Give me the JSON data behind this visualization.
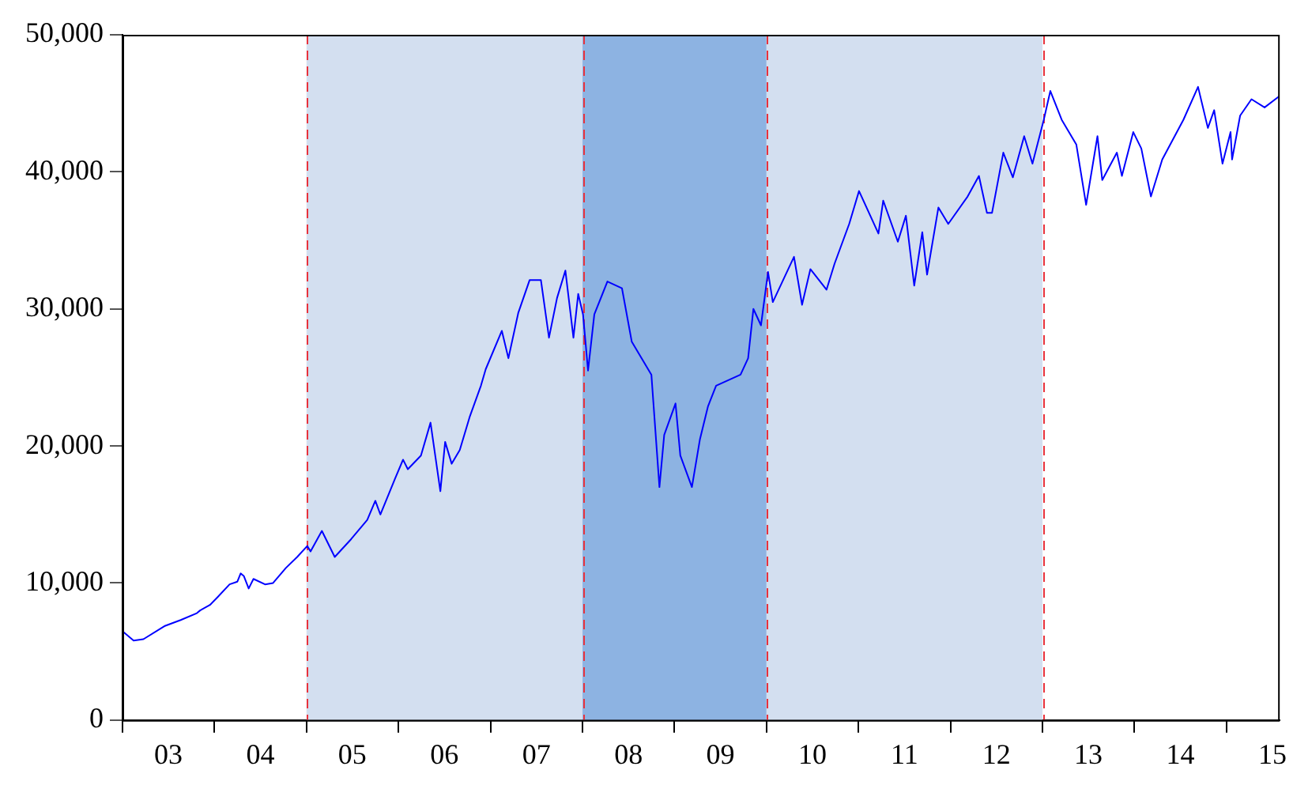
{
  "chart_data": {
    "type": "line",
    "x": [
      "2003-01-06",
      "2003-02-14",
      "2003-03-25",
      "2003-06-16",
      "2003-08-20",
      "2003-10-23",
      "2003-11-05",
      "2003-12-14",
      "2004-01-15",
      "2004-03-01",
      "2004-04-01",
      "2004-04-14",
      "2004-04-27",
      "2004-05-16",
      "2004-06-04",
      "2004-07-20",
      "2004-08-21",
      "2004-10-11",
      "2004-11-25",
      "2005-01-04",
      "2005-01-17",
      "2005-03-03",
      "2005-04-23",
      "2005-06-27",
      "2005-08-30",
      "2005-10-01",
      "2005-10-21",
      "2005-12-18",
      "2006-01-19",
      "2006-02-07",
      "2006-03-31",
      "2006-05-08",
      "2006-06-16",
      "2006-07-05",
      "2006-07-31",
      "2006-09-01",
      "2006-10-10",
      "2006-11-24",
      "2006-12-13",
      "2007-02-15",
      "2007-03-13",
      "2007-04-21",
      "2007-06-05",
      "2007-07-20",
      "2007-08-21",
      "2007-09-22",
      "2007-10-25",
      "2007-11-26",
      "2007-12-15",
      "2008-01-03",
      "2008-01-23",
      "2008-02-17",
      "2008-04-09",
      "2008-06-06",
      "2008-07-15",
      "2008-10-01",
      "2008-11-02",
      "2008-11-21",
      "2009-01-05",
      "2009-01-24",
      "2009-03-11",
      "2009-04-12",
      "2009-05-14",
      "2009-06-15",
      "2009-09-20",
      "2009-10-20",
      "2009-11-10",
      "2009-12-10",
      "2010-01-07",
      "2010-01-26",
      "2010-04-20",
      "2010-05-22",
      "2010-06-24",
      "2010-08-27",
      "2010-09-28",
      "2010-11-25",
      "2011-01-03",
      "2011-03-21",
      "2011-04-09",
      "2011-06-06",
      "2011-07-08",
      "2011-08-10",
      "2011-09-11",
      "2011-09-30",
      "2011-11-14",
      "2011-12-23",
      "2012-03-09",
      "2012-04-23",
      "2012-05-25",
      "2012-06-14",
      "2012-07-29",
      "2012-09-05",
      "2012-10-20",
      "2012-11-22",
      "2013-01-06",
      "2013-02-01",
      "2013-03-18",
      "2013-05-15",
      "2013-06-23",
      "2013-08-07",
      "2013-08-26",
      "2013-10-23",
      "2013-11-12",
      "2013-12-27",
      "2014-01-28",
      "2014-03-07",
      "2014-04-21",
      "2014-07-14",
      "2014-09-10",
      "2014-10-19",
      "2014-11-13",
      "2014-12-16",
      "2015-01-17",
      "2015-01-23",
      "2015-02-24",
      "2015-04-10",
      "2015-06-01",
      "2015-07-28"
    ],
    "series": [
      {
        "color": "#0000ff",
        "values": [
          6400,
          5800,
          5900,
          6850,
          7300,
          7800,
          8000,
          8400,
          9000,
          9900,
          10100,
          10700,
          10500,
          9600,
          10300,
          9900,
          10000,
          11100,
          11900,
          12700,
          12300,
          13800,
          11900,
          13200,
          14600,
          16000,
          15000,
          17600,
          19000,
          18300,
          19300,
          21700,
          16700,
          20300,
          18700,
          19700,
          22100,
          24400,
          25600,
          28400,
          26400,
          29700,
          32100,
          32100,
          27900,
          30800,
          32800,
          27900,
          31100,
          29600,
          25500,
          29600,
          32000,
          31500,
          27600,
          25200,
          17000,
          20800,
          23100,
          19300,
          17000,
          20500,
          22900,
          24400,
          25200,
          26400,
          30000,
          28800,
          32700,
          30500,
          33800,
          30300,
          32900,
          31400,
          33300,
          36200,
          38600,
          35500,
          37900,
          34900,
          36800,
          31700,
          35600,
          32500,
          37400,
          36200,
          38200,
          39700,
          37000,
          37000,
          41400,
          39600,
          42600,
          40600,
          43800,
          45900,
          43800,
          42000,
          37600,
          42600,
          39400,
          41400,
          39700,
          42900,
          41700,
          38200,
          40900,
          43800,
          46200,
          43200,
          44500,
          40600,
          42900,
          40900,
          44100,
          45300,
          44700,
          45500
        ]
      }
    ],
    "xlim": [
      "2003-01-01",
      "2015-07-31"
    ],
    "xticks": [
      {
        "value": "2003-01-01",
        "label": null
      },
      {
        "value": "2003-07-02",
        "label": "03"
      },
      {
        "value": "2004-01-01",
        "label": null
      },
      {
        "value": "2004-07-02",
        "label": "04"
      },
      {
        "value": "2005-01-01",
        "label": null
      },
      {
        "value": "2005-07-02",
        "label": "05"
      },
      {
        "value": "2006-01-01",
        "label": null
      },
      {
        "value": "2006-07-02",
        "label": "06"
      },
      {
        "value": "2007-01-01",
        "label": null
      },
      {
        "value": "2007-07-02",
        "label": "07"
      },
      {
        "value": "2008-01-01",
        "label": null
      },
      {
        "value": "2008-07-02",
        "label": "08"
      },
      {
        "value": "2009-01-01",
        "label": null
      },
      {
        "value": "2009-07-02",
        "label": "09"
      },
      {
        "value": "2010-01-01",
        "label": null
      },
      {
        "value": "2010-07-02",
        "label": "10"
      },
      {
        "value": "2011-01-01",
        "label": null
      },
      {
        "value": "2011-07-02",
        "label": "11"
      },
      {
        "value": "2012-01-01",
        "label": null
      },
      {
        "value": "2012-07-02",
        "label": "12"
      },
      {
        "value": "2013-01-01",
        "label": null
      },
      {
        "value": "2013-07-02",
        "label": "13"
      },
      {
        "value": "2014-01-01",
        "label": null
      },
      {
        "value": "2014-07-02",
        "label": "14"
      },
      {
        "value": "2015-01-01",
        "label": null
      },
      {
        "value": "2015-07-02",
        "label": "15"
      }
    ],
    "ylim": [
      0,
      50000
    ],
    "yticks": [
      {
        "value": 0,
        "label": "0"
      },
      {
        "value": 10000,
        "label": "10,000"
      },
      {
        "value": 20000,
        "label": "20,000"
      },
      {
        "value": 30000,
        "label": "30,000"
      },
      {
        "value": 40000,
        "label": "40,000"
      },
      {
        "value": 50000,
        "label": "50,000"
      }
    ],
    "bands": [
      {
        "axis": "x",
        "from": "2005-01-01",
        "to": "2008-01-01",
        "color": "#d3dff0"
      },
      {
        "axis": "x",
        "from": "2008-01-01",
        "to": "2010-01-01",
        "color": "#8db3e2"
      },
      {
        "axis": "x",
        "from": "2010-01-01",
        "to": "2013-01-01",
        "color": "#d3dff0"
      }
    ],
    "ref_lines": [
      {
        "axis": "x",
        "value": "2005-01-01",
        "color": "#e8323c",
        "line_style": "dashed"
      },
      {
        "axis": "x",
        "value": "2008-01-01",
        "color": "#e8323c",
        "line_style": "dashed"
      },
      {
        "axis": "x",
        "value": "2010-01-01",
        "color": "#e8323c",
        "line_style": "dashed"
      },
      {
        "axis": "x",
        "value": "2013-01-01",
        "color": "#e8323c",
        "line_style": "dashed"
      }
    ],
    "grid": false,
    "legend": false,
    "marker": "none",
    "line_style": "solid"
  }
}
